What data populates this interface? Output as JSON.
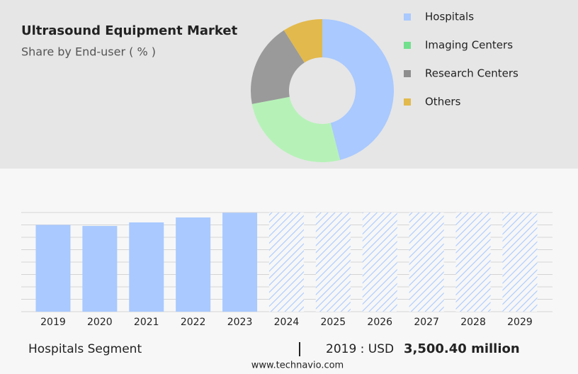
{
  "chart_data": [
    {
      "type": "pie",
      "title": "Ultrasound Equipment Market",
      "subtitle": "Share by End-user ( % )",
      "categories": [
        "Hospitals",
        "Imaging Centers",
        "Research Centers",
        "Others"
      ],
      "values": [
        46,
        26,
        19,
        9
      ],
      "colors": [
        "#a9c9ff",
        "#b6f2b8",
        "#9a9a9a",
        "#e2b94c"
      ],
      "legend_colors": [
        "#a9c9ff",
        "#72df8e",
        "#8e8e8e",
        "#e2b94c"
      ]
    },
    {
      "type": "bar",
      "categories": [
        "2019",
        "2020",
        "2021",
        "2022",
        "2023",
        "2024",
        "2025",
        "2026",
        "2027",
        "2028",
        "2029"
      ],
      "values": [
        3500.4,
        3457,
        3600,
        3800,
        3990,
        null,
        null,
        null,
        null,
        null,
        null
      ],
      "color": "#a9c9ff",
      "ylim": [
        0,
        4000
      ],
      "yticks": [
        0,
        500,
        1000,
        1500,
        2000,
        2500,
        3000,
        3500,
        4000
      ],
      "grid": true,
      "segment_label": "Hospitals Segment",
      "highlight_year": "2019 : USD",
      "highlight_value_label": "3,500.40 million"
    }
  ],
  "source": "www.technavio.com"
}
